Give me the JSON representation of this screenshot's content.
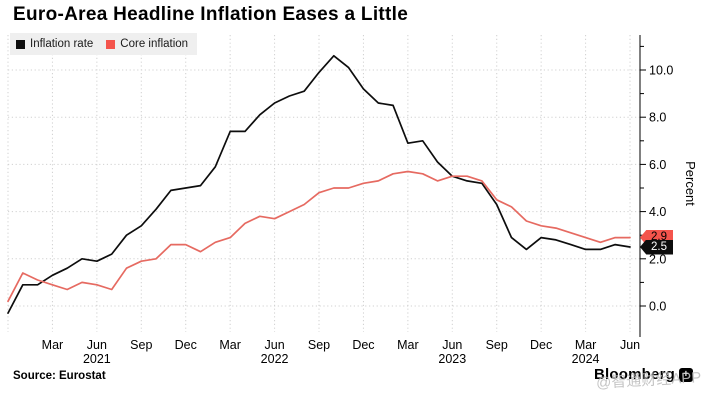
{
  "title": "Euro-Area Headline Inflation Eases a Little",
  "source": "Source: Eurostat",
  "branding": {
    "logo_text": "Bloomberg",
    "logo_icon_glyph": "+"
  },
  "watermark": "@智通财经APP",
  "colors": {
    "headline_line": "#0d0d0d",
    "core_line": "#e66a61",
    "core_label_bg": "#f4544c",
    "gridline": "#d0d0d0",
    "legend_bg": "#efefef"
  },
  "legend": [
    {
      "label": "Inflation rate",
      "color": "#0d0d0d"
    },
    {
      "label": "Core inflation",
      "color": "#f4544c"
    }
  ],
  "end_labels": [
    {
      "series": "Core inflation",
      "value": "2.9",
      "bg": "#f4544c",
      "fg": "#000000"
    },
    {
      "series": "Inflation rate",
      "value": "2.5",
      "bg": "#0d0d0d",
      "fg": "#ffffff"
    }
  ],
  "y_axis": {
    "title": "Percent",
    "major_ticks": [
      0,
      2,
      4,
      6,
      8,
      10
    ],
    "minor_ticks": [
      1,
      3,
      5,
      7,
      9,
      11
    ],
    "tick_labels": [
      "0.0",
      "2.0",
      "4.0",
      "6.0",
      "8.0",
      "10.0"
    ]
  },
  "x_axis": {
    "months": [
      {
        "label": "Mar",
        "idx": 3
      },
      {
        "label": "Jun",
        "idx": 6
      },
      {
        "label": "Sep",
        "idx": 9
      },
      {
        "label": "Dec",
        "idx": 12
      },
      {
        "label": "Mar",
        "idx": 15
      },
      {
        "label": "Jun",
        "idx": 18
      },
      {
        "label": "Sep",
        "idx": 21
      },
      {
        "label": "Dec",
        "idx": 24
      },
      {
        "label": "Mar",
        "idx": 27
      },
      {
        "label": "Jun",
        "idx": 30
      },
      {
        "label": "Sep",
        "idx": 33
      },
      {
        "label": "Dec",
        "idx": 36
      },
      {
        "label": "Mar",
        "idx": 39
      },
      {
        "label": "Jun",
        "idx": 42
      }
    ],
    "years": [
      {
        "label": "2021",
        "idx": 6
      },
      {
        "label": "2022",
        "idx": 18
      },
      {
        "label": "2023",
        "idx": 30
      },
      {
        "label": "2024",
        "idx": 39
      }
    ]
  },
  "chart_data": {
    "type": "line",
    "title": "Euro-Area Headline Inflation Eases a Little",
    "ylabel": "Percent",
    "ylim": [
      -1.1,
      11.5
    ],
    "grid": true,
    "legend_position": "top-left",
    "x": [
      "2020-12",
      "2021-01",
      "2021-02",
      "2021-03",
      "2021-04",
      "2021-05",
      "2021-06",
      "2021-07",
      "2021-08",
      "2021-09",
      "2021-10",
      "2021-11",
      "2021-12",
      "2022-01",
      "2022-02",
      "2022-03",
      "2022-04",
      "2022-05",
      "2022-06",
      "2022-07",
      "2022-08",
      "2022-09",
      "2022-10",
      "2022-11",
      "2022-12",
      "2023-01",
      "2023-02",
      "2023-03",
      "2023-04",
      "2023-05",
      "2023-06",
      "2023-07",
      "2023-08",
      "2023-09",
      "2023-10",
      "2023-11",
      "2023-12",
      "2024-01",
      "2024-02",
      "2024-03",
      "2024-04",
      "2024-05",
      "2024-06"
    ],
    "series": [
      {
        "name": "Inflation rate",
        "color": "#0d0d0d",
        "values": [
          -0.3,
          0.9,
          0.9,
          1.3,
          1.6,
          2.0,
          1.9,
          2.2,
          3.0,
          3.4,
          4.1,
          4.9,
          5.0,
          5.1,
          5.9,
          7.4,
          7.4,
          8.1,
          8.6,
          8.9,
          9.1,
          9.9,
          10.6,
          10.1,
          9.2,
          8.6,
          8.5,
          6.9,
          7.0,
          6.1,
          5.5,
          5.3,
          5.2,
          4.3,
          2.9,
          2.4,
          2.9,
          2.8,
          2.6,
          2.4,
          2.4,
          2.6,
          2.5
        ]
      },
      {
        "name": "Core inflation",
        "color": "#e66a61",
        "values": [
          0.2,
          1.4,
          1.1,
          0.9,
          0.7,
          1.0,
          0.9,
          0.7,
          1.6,
          1.9,
          2.0,
          2.6,
          2.6,
          2.3,
          2.7,
          2.9,
          3.5,
          3.8,
          3.7,
          4.0,
          4.3,
          4.8,
          5.0,
          5.0,
          5.2,
          5.3,
          5.6,
          5.7,
          5.6,
          5.3,
          5.5,
          5.5,
          5.3,
          4.5,
          4.2,
          3.6,
          3.4,
          3.3,
          3.1,
          2.9,
          2.7,
          2.9,
          2.9
        ]
      }
    ]
  }
}
